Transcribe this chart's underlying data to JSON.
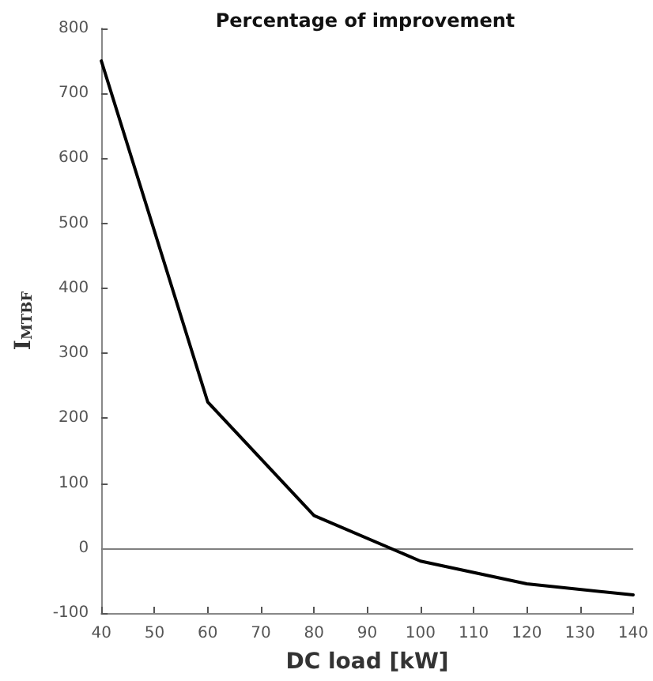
{
  "chart_data": {
    "type": "line",
    "title": "Percentage of improvement",
    "xlabel": "DC load [kW]",
    "ylabel": "I$_{MTBF}$",
    "x": [
      40,
      60,
      80,
      100,
      120,
      140
    ],
    "series": [
      {
        "color": "#000000",
        "values": [
          750,
          225,
          50,
          -20,
          -55,
          -72
        ]
      }
    ],
    "xlim": [
      40,
      140
    ],
    "xticks": [
      40,
      50,
      60,
      70,
      80,
      90,
      100,
      110,
      120,
      130,
      140
    ],
    "ylim": [
      -100,
      800
    ],
    "yticks": [
      -100,
      0,
      100,
      200,
      300,
      400,
      500,
      600,
      700,
      800
    ],
    "ref_lines": [
      {
        "axis": "y",
        "value": 0,
        "color": "#808080"
      }
    ],
    "marker": "none",
    "line_style": "solid"
  }
}
